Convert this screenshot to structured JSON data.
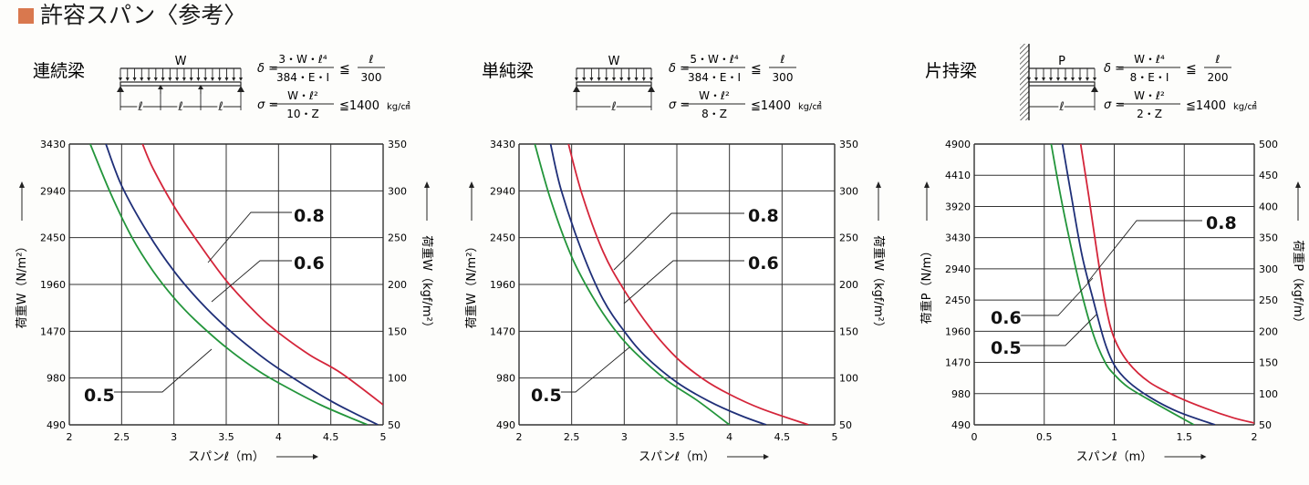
{
  "page": {
    "title": "許容スパン〈参考〉"
  },
  "panels": [
    {
      "id": "continuous",
      "name": "連続梁",
      "load_label": "W",
      "span_label": "ℓ",
      "formula_delta": {
        "lhs": "δ =",
        "num": "3・W・ℓ⁴",
        "den": "384・E・I",
        "rel": "≦",
        "rnum": "ℓ",
        "rden": "300"
      },
      "formula_sigma": {
        "lhs": "σ =",
        "num": "W・ℓ²",
        "den": "10・Z",
        "rel": "≦1400",
        "unit": "kg/㎠"
      },
      "curve_labels": [
        "0.8",
        "0.6",
        "0.5"
      ]
    },
    {
      "id": "simple",
      "name": "単純梁",
      "load_label": "W",
      "span_label": "ℓ",
      "formula_delta": {
        "lhs": "δ =",
        "num": "5・W・ℓ⁴",
        "den": "384・E・I",
        "rel": "≦",
        "rnum": "ℓ",
        "rden": "300"
      },
      "formula_sigma": {
        "lhs": "σ =",
        "num": "W・ℓ²",
        "den": "8・Z",
        "rel": "≦1400",
        "unit": "kg/㎠"
      },
      "curve_labels": [
        "0.8",
        "0.6",
        "0.5"
      ]
    },
    {
      "id": "cantilever",
      "name": "片持梁",
      "load_label": "P",
      "span_label": "ℓ",
      "formula_delta": {
        "lhs": "δ =",
        "num": "W・ℓ⁴",
        "den": "8・E・I",
        "rel": "≦",
        "rnum": "ℓ",
        "rden": "200"
      },
      "formula_sigma": {
        "lhs": "σ =",
        "num": "W・ℓ²",
        "den": "2・Z",
        "rel": "≦1400",
        "unit": "kg/㎠"
      },
      "curve_labels": [
        "0.8",
        "0.6",
        "0.5"
      ]
    }
  ],
  "colors": {
    "series_08": "#d4253a",
    "series_06": "#1f2f78",
    "series_05": "#23953b",
    "grid": "#333333"
  },
  "chart_data": [
    {
      "type": "line",
      "xlabel": "スパンℓ（m）",
      "ylabel_left": "荷重W（N/m²）",
      "ylabel_right": "荷重W（kgf/m²）",
      "xlim": [
        2,
        5
      ],
      "ylim": [
        490,
        3430
      ],
      "ylim_right": [
        50,
        350
      ],
      "xticks": [
        "2",
        "2.5",
        "3",
        "3.5",
        "4",
        "4.5",
        "5"
      ],
      "yticks": [
        "490",
        "980",
        "1470",
        "1960",
        "2450",
        "2940",
        "3430"
      ],
      "yticks_right": [
        "50",
        "100",
        "150",
        "200",
        "250",
        "300",
        "350"
      ],
      "series": [
        {
          "name": "0.8",
          "x": [
            2.7,
            2.8,
            3.0,
            3.2,
            3.5,
            3.8,
            4.0,
            4.3,
            4.6,
            5.0
          ],
          "y": [
            3430,
            3175,
            2780,
            2450,
            2000,
            1645,
            1455,
            1220,
            1030,
            700
          ]
        },
        {
          "name": "0.6",
          "x": [
            2.35,
            2.5,
            2.75,
            3.0,
            3.25,
            3.5,
            3.75,
            4.0,
            4.5,
            4.95
          ],
          "y": [
            3430,
            2995,
            2500,
            2100,
            1780,
            1510,
            1280,
            1080,
            740,
            490
          ]
        },
        {
          "name": "0.5",
          "x": [
            2.2,
            2.4,
            2.6,
            2.8,
            3.0,
            3.2,
            3.5,
            3.8,
            4.0,
            4.4,
            4.85
          ],
          "y": [
            3430,
            2900,
            2450,
            2100,
            1820,
            1590,
            1300,
            1060,
            930,
            700,
            490
          ]
        }
      ]
    },
    {
      "type": "line",
      "xlabel": "スパンℓ（m）",
      "ylabel_left": "荷重W（N/m²）",
      "ylabel_right": "荷重W（kgf/m²）",
      "xlim": [
        2,
        5
      ],
      "ylim": [
        490,
        3430
      ],
      "ylim_right": [
        50,
        350
      ],
      "xticks": [
        "2",
        "2.5",
        "3",
        "3.5",
        "4",
        "4.5",
        "5"
      ],
      "yticks": [
        "490",
        "980",
        "1470",
        "1960",
        "2450",
        "2940",
        "3430"
      ],
      "yticks_right": [
        "50",
        "100",
        "150",
        "200",
        "250",
        "300",
        "350"
      ],
      "series": [
        {
          "name": "0.8",
          "x": [
            2.47,
            2.6,
            2.8,
            3.0,
            3.25,
            3.5,
            3.75,
            4.0,
            4.3,
            4.75
          ],
          "y": [
            3430,
            2900,
            2300,
            1900,
            1500,
            1190,
            970,
            810,
            660,
            490
          ]
        },
        {
          "name": "0.6",
          "x": [
            2.3,
            2.4,
            2.6,
            2.8,
            3.0,
            3.2,
            3.5,
            3.8,
            4.1,
            4.35
          ],
          "y": [
            3430,
            2950,
            2300,
            1800,
            1470,
            1210,
            935,
            740,
            590,
            490
          ]
        },
        {
          "name": "0.5",
          "x": [
            2.15,
            2.3,
            2.5,
            2.7,
            2.9,
            3.1,
            3.4,
            3.7,
            4.0
          ],
          "y": [
            3430,
            2850,
            2250,
            1830,
            1500,
            1250,
            960,
            740,
            490
          ]
        }
      ]
    },
    {
      "type": "line",
      "xlabel": "スパンℓ（m）",
      "ylabel_left": "荷重P（N/m）",
      "ylabel_right": "荷重P（kgf/m）",
      "xlim": [
        0,
        2
      ],
      "ylim": [
        490,
        4900
      ],
      "ylim_right": [
        50,
        500
      ],
      "xticks": [
        "0",
        "0.5",
        "1",
        "1.5",
        "2"
      ],
      "yticks": [
        "490",
        "980",
        "1470",
        "1960",
        "2450",
        "2940",
        "3430",
        "3920",
        "4410",
        "4900"
      ],
      "yticks_right": [
        "50",
        "100",
        "150",
        "200",
        "250",
        "300",
        "350",
        "400",
        "450",
        "500"
      ],
      "series": [
        {
          "name": "0.8",
          "x": [
            0.76,
            0.82,
            0.88,
            0.94,
            1.0,
            1.1,
            1.25,
            1.45,
            1.65,
            1.85,
            2.0
          ],
          "y": [
            4900,
            4050,
            3150,
            2350,
            1850,
            1470,
            1160,
            930,
            750,
            600,
            520
          ]
        },
        {
          "name": "0.6",
          "x": [
            0.63,
            0.7,
            0.77,
            0.85,
            0.93,
            1.0,
            1.1,
            1.25,
            1.45,
            1.72
          ],
          "y": [
            4900,
            4000,
            3150,
            2450,
            1800,
            1430,
            1170,
            930,
            700,
            490
          ]
        },
        {
          "name": "0.5",
          "x": [
            0.55,
            0.62,
            0.7,
            0.78,
            0.86,
            0.94,
            1.0,
            1.1,
            1.3,
            1.57
          ],
          "y": [
            4900,
            4050,
            3200,
            2450,
            1850,
            1450,
            1280,
            1080,
            820,
            490
          ]
        }
      ]
    }
  ]
}
